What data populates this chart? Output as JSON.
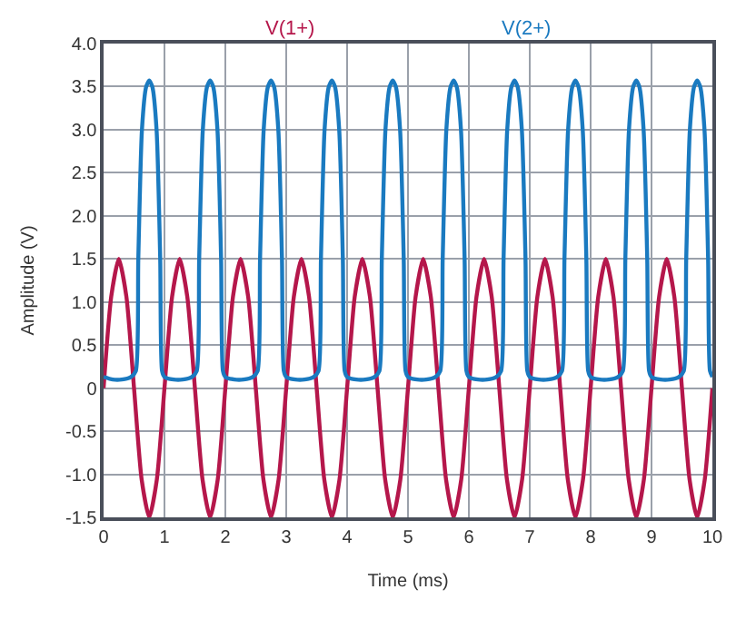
{
  "chart_data": {
    "type": "line",
    "xlabel": "Time (ms)",
    "ylabel": "Amplitude (V)",
    "xlim": [
      0,
      10
    ],
    "xticks": [
      0,
      1,
      2,
      3,
      4,
      5,
      6,
      7,
      8,
      9,
      10
    ],
    "ylim": [
      -1.5,
      4.0
    ],
    "yticks": [
      {
        "value": -1.5,
        "label": "-1.5"
      },
      {
        "value": -1.0,
        "label": "-1.0"
      },
      {
        "value": -0.5,
        "label": "-0.5"
      },
      0,
      {
        "value": 0.5,
        "label": "0.5"
      },
      {
        "value": 1.0,
        "label": "1.0"
      },
      {
        "value": 1.5,
        "label": "1.5"
      },
      {
        "value": 2.0,
        "label": "2.0"
      },
      {
        "value": 2.5,
        "label": "2.5"
      },
      {
        "value": 3.0,
        "label": "3.0"
      },
      {
        "value": 3.5,
        "label": "3.5"
      },
      {
        "value": 4.0,
        "label": "4.0"
      }
    ],
    "grid": true,
    "legend": false,
    "marker": "none",
    "line_style": "solid",
    "series": [
      {
        "name": "V(1+)",
        "color": "#b5174b",
        "x": [
          0,
          0.125,
          0.25,
          0.375,
          0.5,
          0.625,
          0.75,
          0.875,
          1,
          1.125,
          1.25,
          1.375,
          1.5,
          1.625,
          1.75,
          1.875,
          2,
          2.125,
          2.25,
          2.375,
          2.5,
          2.625,
          2.75,
          2.875,
          3,
          3.125,
          3.25,
          3.375,
          3.5,
          3.625,
          3.75,
          3.875,
          4,
          4.125,
          4.25,
          4.375,
          4.5,
          4.625,
          4.75,
          4.875,
          5,
          5.125,
          5.25,
          5.375,
          5.5,
          5.625,
          5.75,
          5.875,
          6,
          6.125,
          6.25,
          6.375,
          6.5,
          6.625,
          6.75,
          6.875,
          7,
          7.125,
          7.25,
          7.375,
          7.5,
          7.625,
          7.75,
          7.875,
          8,
          8.125,
          8.25,
          8.375,
          8.5,
          8.625,
          8.75,
          8.875,
          9,
          9.125,
          9.25,
          9.375,
          9.5,
          9.625,
          9.75,
          9.875,
          10
        ],
        "values": [
          0,
          1.06,
          1.5,
          1.06,
          0,
          -1.06,
          -1.5,
          -1.06,
          0,
          1.06,
          1.5,
          1.06,
          0,
          -1.06,
          -1.5,
          -1.06,
          0,
          1.06,
          1.5,
          1.06,
          0,
          -1.06,
          -1.5,
          -1.06,
          0,
          1.06,
          1.5,
          1.06,
          0,
          -1.06,
          -1.5,
          -1.06,
          0,
          1.06,
          1.5,
          1.06,
          0,
          -1.06,
          -1.5,
          -1.06,
          0,
          1.06,
          1.5,
          1.06,
          0,
          -1.06,
          -1.5,
          -1.06,
          0,
          1.06,
          1.5,
          1.06,
          0,
          -1.06,
          -1.5,
          -1.06,
          0,
          1.06,
          1.5,
          1.06,
          0,
          -1.06,
          -1.5,
          -1.06,
          0,
          1.06,
          1.5,
          1.06,
          0,
          -1.06,
          -1.5,
          -1.06,
          0,
          1.06,
          1.5,
          1.06,
          0,
          -1.06,
          -1.5,
          -1.06,
          0
        ]
      },
      {
        "name": "V(2+)",
        "color": "#1a7ac0",
        "x": [
          0,
          0.15,
          0.3,
          0.45,
          0.53,
          0.57,
          0.63,
          0.7,
          0.75,
          0.8,
          0.87,
          0.93,
          0.96,
          1,
          1.15,
          1.3,
          1.45,
          1.53,
          1.57,
          1.63,
          1.7,
          1.75,
          1.8,
          1.87,
          1.93,
          1.96,
          2,
          2.15,
          2.3,
          2.45,
          2.53,
          2.57,
          2.63,
          2.7,
          2.75,
          2.8,
          2.87,
          2.93,
          2.96,
          3,
          3.15,
          3.3,
          3.45,
          3.53,
          3.57,
          3.63,
          3.7,
          3.75,
          3.8,
          3.87,
          3.93,
          3.96,
          4,
          4.15,
          4.3,
          4.45,
          4.53,
          4.57,
          4.63,
          4.7,
          4.75,
          4.8,
          4.87,
          4.93,
          4.96,
          5,
          5.15,
          5.3,
          5.45,
          5.53,
          5.57,
          5.63,
          5.7,
          5.75,
          5.8,
          5.87,
          5.93,
          5.96,
          6,
          6.15,
          6.3,
          6.45,
          6.53,
          6.57,
          6.63,
          6.7,
          6.75,
          6.8,
          6.87,
          6.93,
          6.96,
          7,
          7.15,
          7.3,
          7.45,
          7.53,
          7.57,
          7.63,
          7.7,
          7.75,
          7.8,
          7.87,
          7.93,
          7.96,
          8,
          8.15,
          8.3,
          8.45,
          8.53,
          8.57,
          8.63,
          8.7,
          8.75,
          8.8,
          8.87,
          8.93,
          8.96,
          9,
          9.15,
          9.3,
          9.45,
          9.53,
          9.57,
          9.63,
          9.7,
          9.75,
          9.8,
          9.87,
          9.93,
          9.96,
          10
        ],
        "values": [
          0.13,
          0.1,
          0.1,
          0.13,
          0.2,
          1.5,
          3.0,
          3.5,
          3.57,
          3.5,
          3.0,
          1.5,
          0.2,
          0.13,
          0.1,
          0.1,
          0.13,
          0.2,
          1.5,
          3.0,
          3.5,
          3.57,
          3.5,
          3.0,
          1.5,
          0.2,
          0.13,
          0.1,
          0.1,
          0.13,
          0.2,
          1.5,
          3.0,
          3.5,
          3.57,
          3.5,
          3.0,
          1.5,
          0.2,
          0.13,
          0.1,
          0.1,
          0.13,
          0.2,
          1.5,
          3.0,
          3.5,
          3.57,
          3.5,
          3.0,
          1.5,
          0.2,
          0.13,
          0.1,
          0.1,
          0.13,
          0.2,
          1.5,
          3.0,
          3.5,
          3.57,
          3.5,
          3.0,
          1.5,
          0.2,
          0.13,
          0.1,
          0.1,
          0.13,
          0.2,
          1.5,
          3.0,
          3.5,
          3.57,
          3.5,
          3.0,
          1.5,
          0.2,
          0.13,
          0.1,
          0.1,
          0.13,
          0.2,
          1.5,
          3.0,
          3.5,
          3.57,
          3.5,
          3.0,
          1.5,
          0.2,
          0.13,
          0.1,
          0.1,
          0.13,
          0.2,
          1.5,
          3.0,
          3.5,
          3.57,
          3.5,
          3.0,
          1.5,
          0.2,
          0.13,
          0.1,
          0.1,
          0.13,
          0.2,
          1.5,
          3.0,
          3.5,
          3.57,
          3.5,
          3.0,
          1.5,
          0.2,
          0.13,
          0.1,
          0.1,
          0.13,
          0.2,
          1.5,
          3.0,
          3.5,
          3.57,
          3.5,
          3.0,
          1.5,
          0.2,
          0.13
        ]
      }
    ]
  }
}
